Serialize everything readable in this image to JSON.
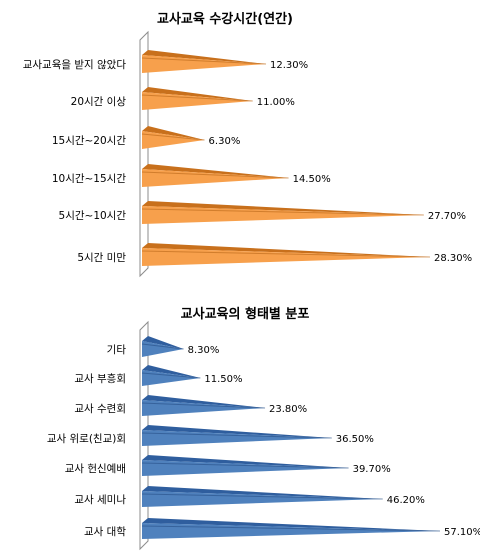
{
  "chart_data": [
    {
      "type": "bar",
      "orientation": "horizontal",
      "title": "교사교육 수강시간(연간)",
      "categories": [
        "교사교육을 받지 않았다",
        "20시간 이상",
        "15시간~20시간",
        "10시간~15시간",
        "5시간~10시간",
        "5시간 미만"
      ],
      "values": [
        12.3,
        11.0,
        6.3,
        14.5,
        27.7,
        28.3
      ],
      "value_labels": [
        "12.30%",
        "11.00%",
        "6.30%",
        "14.50%",
        "27.70%",
        "28.30%"
      ],
      "value_unit": "%",
      "xlim": [
        0,
        30
      ],
      "grid": false,
      "legend": "none",
      "bar_style": "3d-cone",
      "colors": {
        "top": "#C8701C",
        "front": "#F7A04C",
        "dark": "#B86618"
      }
    },
    {
      "type": "bar",
      "orientation": "horizontal",
      "title": "교사교육의 형태별 분포",
      "categories": [
        "기타",
        "교사 부흥회",
        "교사 수련회",
        "교사 위로(친교)회",
        "교사 헌신예배",
        "교사 세미나",
        "교사 대학"
      ],
      "values": [
        8.3,
        11.5,
        23.8,
        36.5,
        39.7,
        46.2,
        57.1
      ],
      "value_labels": [
        "8.30%",
        "11.50%",
        "23.80%",
        "36.50%",
        "39.70%",
        "46.20%",
        "57.10%"
      ],
      "value_unit": "%",
      "xlim": [
        0,
        60
      ],
      "grid": false,
      "legend": "none",
      "bar_style": "3d-cone",
      "colors": {
        "top": "#2F5E9E",
        "front": "#4F81BD",
        "dark": "#264F85"
      }
    }
  ]
}
